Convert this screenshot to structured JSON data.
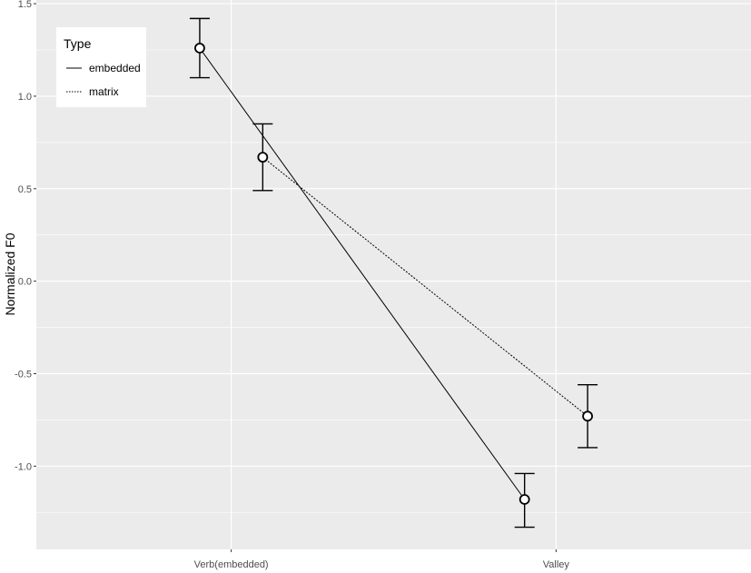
{
  "chart_data": {
    "type": "line",
    "categories": [
      "Verb(embedded)",
      "Valley"
    ],
    "ylabel": "Normalized F0",
    "xlabel": "",
    "ylim": [
      -1.45,
      1.52
    ],
    "yticks": [
      "1.5",
      "1.0",
      "0.5",
      "0.0",
      "-0.5",
      "-1.0"
    ],
    "ytick_values": [
      1.5,
      1.0,
      0.5,
      0.0,
      -0.5,
      -1.0
    ],
    "grid": true,
    "legend": {
      "title": "Type",
      "placement": "top-left",
      "entries": [
        "embedded",
        "matrix"
      ]
    },
    "series": [
      {
        "name": "embedded",
        "line_style": "solid",
        "values": [
          1.26,
          -1.18
        ],
        "error_low": [
          1.1,
          -1.33
        ],
        "error_high": [
          1.42,
          -1.04
        ]
      },
      {
        "name": "matrix",
        "line_style": "dotted",
        "values": [
          0.67,
          -0.73
        ],
        "error_low": [
          0.49,
          -0.9
        ],
        "error_high": [
          0.85,
          -0.56
        ]
      }
    ]
  },
  "colors": {
    "panel_background": "#ebebeb",
    "grid_major": "#ffffff",
    "line": "#000000",
    "point_fill": "#ffffff"
  }
}
